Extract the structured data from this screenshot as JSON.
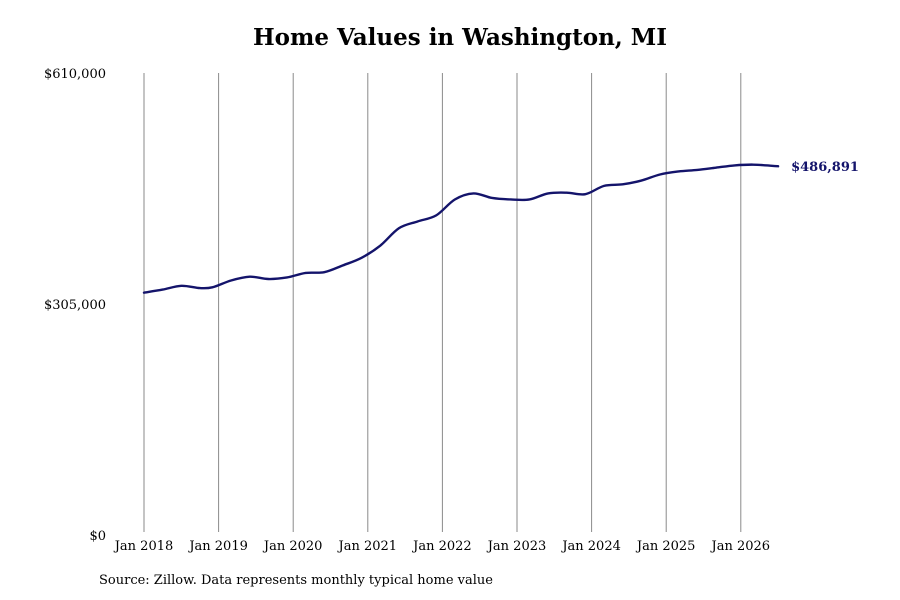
{
  "chart_data": {
    "type": "line",
    "title": "Home Values in Washington, MI",
    "source": "Source: Zillow. Data represents monthly typical home value",
    "xlabel": "",
    "ylabel": "",
    "ylim": [
      0,
      610000
    ],
    "yticks": [
      {
        "value": 0,
        "label": "$0"
      },
      {
        "value": 305000,
        "label": "$305,000"
      },
      {
        "value": 610000,
        "label": "$610,000"
      }
    ],
    "xticks": [
      {
        "value": "2018-01",
        "label": "Jan 2018"
      },
      {
        "value": "2019-01",
        "label": "Jan 2019"
      },
      {
        "value": "2020-01",
        "label": "Jan 2020"
      },
      {
        "value": "2021-01",
        "label": "Jan 2021"
      },
      {
        "value": "2022-01",
        "label": "Jan 2022"
      },
      {
        "value": "2023-01",
        "label": "Jan 2023"
      },
      {
        "value": "2024-01",
        "label": "Jan 2024"
      },
      {
        "value": "2025-01",
        "label": "Jan 2025"
      },
      {
        "value": "2026-01",
        "label": "Jan 2026"
      }
    ],
    "grid": "vertical",
    "line_color": "#14146b",
    "end_label": "$486,891",
    "series": [
      {
        "x": [
          "2018-01",
          "2018-04",
          "2018-07",
          "2018-10",
          "2018-12",
          "2019-03",
          "2019-06",
          "2019-09",
          "2019-12",
          "2020-03",
          "2020-06",
          "2020-09",
          "2020-12",
          "2021-03",
          "2021-06",
          "2021-09",
          "2021-12",
          "2022-03",
          "2022-06",
          "2022-09",
          "2022-12",
          "2023-03",
          "2023-06",
          "2023-09",
          "2023-12",
          "2024-03",
          "2024-06",
          "2024-09",
          "2024-12",
          "2025-03",
          "2025-06",
          "2025-09",
          "2025-12",
          "2026-03",
          "2026-06",
          "2026-07"
        ],
        "values": [
          320000,
          324000,
          329000,
          326000,
          327000,
          336000,
          341000,
          338000,
          340000,
          346000,
          347000,
          356000,
          366000,
          382000,
          405000,
          414000,
          422000,
          443000,
          451000,
          445000,
          443000,
          443000,
          451000,
          452000,
          450000,
          461000,
          463000,
          468000,
          476000,
          480000,
          482000,
          485000,
          488000,
          489000,
          487500,
          486891
        ]
      }
    ]
  }
}
